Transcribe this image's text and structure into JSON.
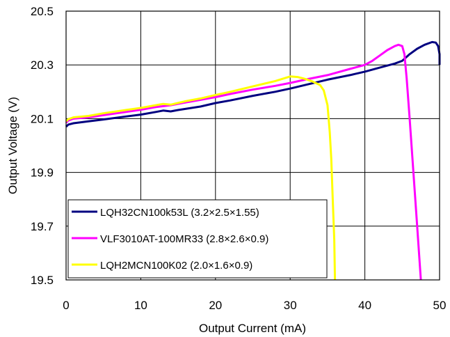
{
  "chart_data": {
    "type": "line",
    "xlabel": "Output Current (mA)",
    "ylabel": "Output Voltage (V)",
    "xlim": [
      0,
      50
    ],
    "ylim": [
      19.5,
      20.5
    ],
    "x_ticks": [
      "0",
      "10",
      "20",
      "30",
      "40",
      "50"
    ],
    "y_ticks": [
      "19.5",
      "19.7",
      "19.9",
      "20.1",
      "20.3",
      "20.5"
    ],
    "grid": true,
    "legend_position": "bottom-left",
    "series": [
      {
        "name": "LQH32CN100k53L (3.2×2.5×1.55)",
        "color": "#000080",
        "points": [
          [
            0,
            20.07
          ],
          [
            0.3,
            20.078
          ],
          [
            1,
            20.083
          ],
          [
            3,
            20.09
          ],
          [
            5,
            20.097
          ],
          [
            8,
            20.108
          ],
          [
            10,
            20.115
          ],
          [
            12,
            20.125
          ],
          [
            13,
            20.13
          ],
          [
            14,
            20.127
          ],
          [
            15,
            20.132
          ],
          [
            18,
            20.145
          ],
          [
            20,
            20.158
          ],
          [
            22,
            20.168
          ],
          [
            25,
            20.185
          ],
          [
            28,
            20.2
          ],
          [
            30,
            20.212
          ],
          [
            32,
            20.225
          ],
          [
            35,
            20.245
          ],
          [
            38,
            20.262
          ],
          [
            40,
            20.275
          ],
          [
            42,
            20.29
          ],
          [
            44,
            20.305
          ],
          [
            45,
            20.315
          ],
          [
            46,
            20.34
          ],
          [
            47,
            20.36
          ],
          [
            48,
            20.375
          ],
          [
            49,
            20.385
          ],
          [
            49.5,
            20.383
          ],
          [
            49.8,
            20.37
          ],
          [
            50,
            20.34
          ],
          [
            50,
            20.3
          ]
        ]
      },
      {
        "name": "VLF3010AT-100MR33 (2.8×2.6×0.9)",
        "color": "#ff00ff",
        "points": [
          [
            0,
            20.085
          ],
          [
            0.3,
            20.093
          ],
          [
            1,
            20.1
          ],
          [
            3,
            20.105
          ],
          [
            5,
            20.113
          ],
          [
            8,
            20.125
          ],
          [
            10,
            20.133
          ],
          [
            12,
            20.143
          ],
          [
            14,
            20.15
          ],
          [
            16,
            20.16
          ],
          [
            18,
            20.17
          ],
          [
            20,
            20.18
          ],
          [
            22,
            20.192
          ],
          [
            25,
            20.208
          ],
          [
            28,
            20.222
          ],
          [
            30,
            20.233
          ],
          [
            32,
            20.245
          ],
          [
            35,
            20.262
          ],
          [
            38,
            20.285
          ],
          [
            40,
            20.3
          ],
          [
            41,
            20.315
          ],
          [
            42,
            20.335
          ],
          [
            43,
            20.355
          ],
          [
            44,
            20.37
          ],
          [
            44.5,
            20.375
          ],
          [
            45,
            20.37
          ],
          [
            45.3,
            20.34
          ],
          [
            45.6,
            20.25
          ],
          [
            46,
            20.1
          ],
          [
            46.5,
            19.9
          ],
          [
            47,
            19.7
          ],
          [
            47.5,
            19.5
          ]
        ]
      },
      {
        "name": "LQH2MCN100K02 (2.0×1.6×0.9)",
        "color": "#ffff00",
        "points": [
          [
            0,
            20.09
          ],
          [
            0.3,
            20.098
          ],
          [
            1,
            20.105
          ],
          [
            3,
            20.11
          ],
          [
            5,
            20.12
          ],
          [
            8,
            20.132
          ],
          [
            10,
            20.14
          ],
          [
            12,
            20.15
          ],
          [
            13,
            20.155
          ],
          [
            14,
            20.152
          ],
          [
            16,
            20.165
          ],
          [
            18,
            20.175
          ],
          [
            20,
            20.188
          ],
          [
            22,
            20.2
          ],
          [
            25,
            20.22
          ],
          [
            28,
            20.24
          ],
          [
            30,
            20.257
          ],
          [
            31,
            20.255
          ],
          [
            32,
            20.248
          ],
          [
            33,
            20.238
          ],
          [
            34,
            20.225
          ],
          [
            34.5,
            20.205
          ],
          [
            35,
            20.15
          ],
          [
            35.3,
            20.05
          ],
          [
            35.5,
            19.95
          ],
          [
            35.7,
            19.8
          ],
          [
            35.9,
            19.65
          ],
          [
            36,
            19.5
          ]
        ]
      }
    ]
  }
}
